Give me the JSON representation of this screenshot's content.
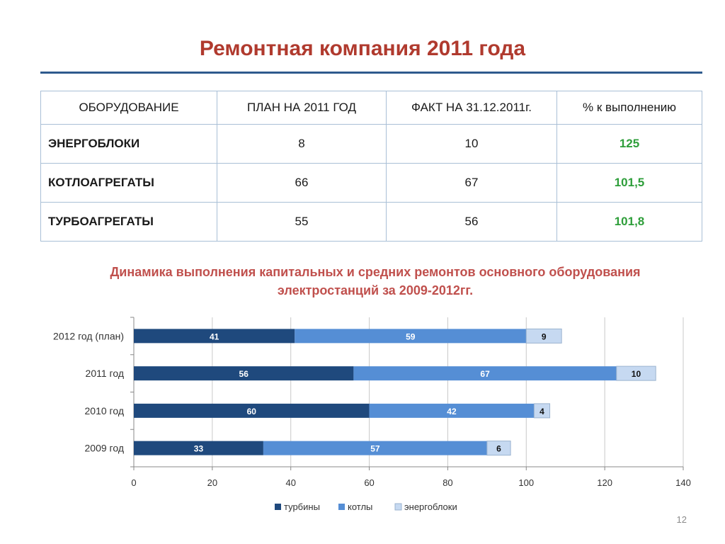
{
  "page": {
    "title": "Ремонтная компания 2011 года",
    "slide_number": "12"
  },
  "table": {
    "headers": [
      "ОБОРУДОВАНИЕ",
      "ПЛАН НА 2011 ГОД",
      "ФАКТ НА 31.12.2011г.",
      "% к выполнению"
    ],
    "rows": [
      {
        "name": "ЭНЕРГОБЛОКИ",
        "plan": "8",
        "fact": "10",
        "pct": "125"
      },
      {
        "name": "КОТЛОАГРЕГАТЫ",
        "plan": "66",
        "fact": "67",
        "pct": "101,5"
      },
      {
        "name": "ТУРБОАГРЕГАТЫ",
        "plan": "55",
        "fact": "56",
        "pct": "101,8"
      }
    ]
  },
  "chart_title": {
    "line1": "Динамика выполнения капитальных и средних ремонтов основного оборудования",
    "line2": "электростанций за 2009-2012гг."
  },
  "colors": {
    "turbines": "#1f497d",
    "boilers": "#558ed5",
    "units": "#c6d9f1",
    "accent_title": "#b03a2e",
    "accent_green": "#2e9e3a"
  },
  "chart_data": {
    "type": "bar",
    "orientation": "horizontal",
    "stacked": true,
    "categories": [
      "2012 год (план)",
      "2011 год",
      "2010 год",
      "2009 год"
    ],
    "series": [
      {
        "name": "турбины",
        "values": [
          41,
          56,
          60,
          33
        ]
      },
      {
        "name": "котлы",
        "values": [
          59,
          67,
          42,
          57
        ]
      },
      {
        "name": "энергоблоки",
        "values": [
          9,
          10,
          4,
          6
        ]
      }
    ],
    "xlim": [
      0,
      140
    ],
    "xticks": [
      0,
      20,
      40,
      60,
      80,
      100,
      120,
      140
    ],
    "grid": true,
    "legend": "bottom"
  }
}
